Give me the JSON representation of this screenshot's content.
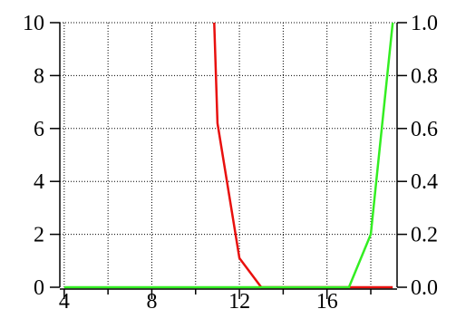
{
  "chart_data": {
    "type": "line",
    "title": "",
    "xlabel": "",
    "ylabel": "",
    "y2label": "",
    "xlim": [
      3.8,
      19.2
    ],
    "ylim": [
      0,
      10
    ],
    "y2lim": [
      0,
      1.0
    ],
    "grid": true,
    "legend": "none",
    "x_ticks": [
      "4",
      "8",
      "12",
      "16"
    ],
    "y_ticks": [
      "0",
      "2",
      "4",
      "6",
      "8",
      "10"
    ],
    "y2_ticks": [
      "0.0",
      "0.2",
      "0.4",
      "0.6",
      "0.8",
      "1.0"
    ],
    "series": [
      {
        "axis": "left",
        "color": "#e8100e",
        "x": [
          10.85,
          11,
          12,
          13,
          14,
          15,
          16,
          17,
          18,
          19
        ],
        "y": [
          10,
          6.2,
          1.1,
          0,
          0,
          0,
          0,
          0,
          0,
          0
        ]
      },
      {
        "axis": "right",
        "color": "#33ee22",
        "x": [
          4,
          5,
          6,
          7,
          8,
          9,
          10,
          11,
          12,
          13,
          14,
          15,
          16,
          17,
          18,
          19
        ],
        "y": [
          0,
          0,
          0,
          0,
          0,
          0,
          0,
          0,
          0,
          0,
          0,
          0,
          0,
          0,
          0.2,
          1.0
        ]
      }
    ]
  }
}
